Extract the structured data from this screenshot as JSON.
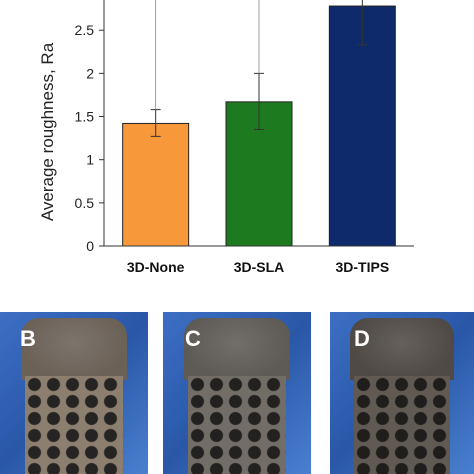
{
  "chart_data": {
    "type": "bar",
    "title": "",
    "xlabel": "",
    "ylabel": "Average roughness, Ra",
    "categories": [
      "3D-None",
      "3D-SLA",
      "3D-TIPS"
    ],
    "values": [
      1.42,
      1.67,
      2.78
    ],
    "error_lower": [
      0.15,
      0.32,
      0.45
    ],
    "error_upper": [
      0.16,
      0.33,
      0.45
    ],
    "upper_whisker": [
      2.85,
      2.85,
      2.85
    ],
    "ylim": [
      0,
      2.85
    ],
    "yticks": [
      "0",
      "0.5",
      "1",
      "1.5",
      "2",
      "2.5"
    ],
    "ytick_values": [
      0,
      0.5,
      1,
      1.5,
      2,
      2.5
    ],
    "bar_colors": [
      "#f7993a",
      "#1e7a1e",
      "#0e2a6b"
    ],
    "grid": false,
    "legend": "none"
  },
  "photos": [
    {
      "letter": "B",
      "cap_color": "#6b6157",
      "lattice_color": "#8c7f70"
    },
    {
      "letter": "C",
      "cap_color": "#5e5a55",
      "lattice_color": "#726d66"
    },
    {
      "letter": "D",
      "cap_color": "#4f4a45",
      "lattice_color": "#605a52"
    }
  ]
}
